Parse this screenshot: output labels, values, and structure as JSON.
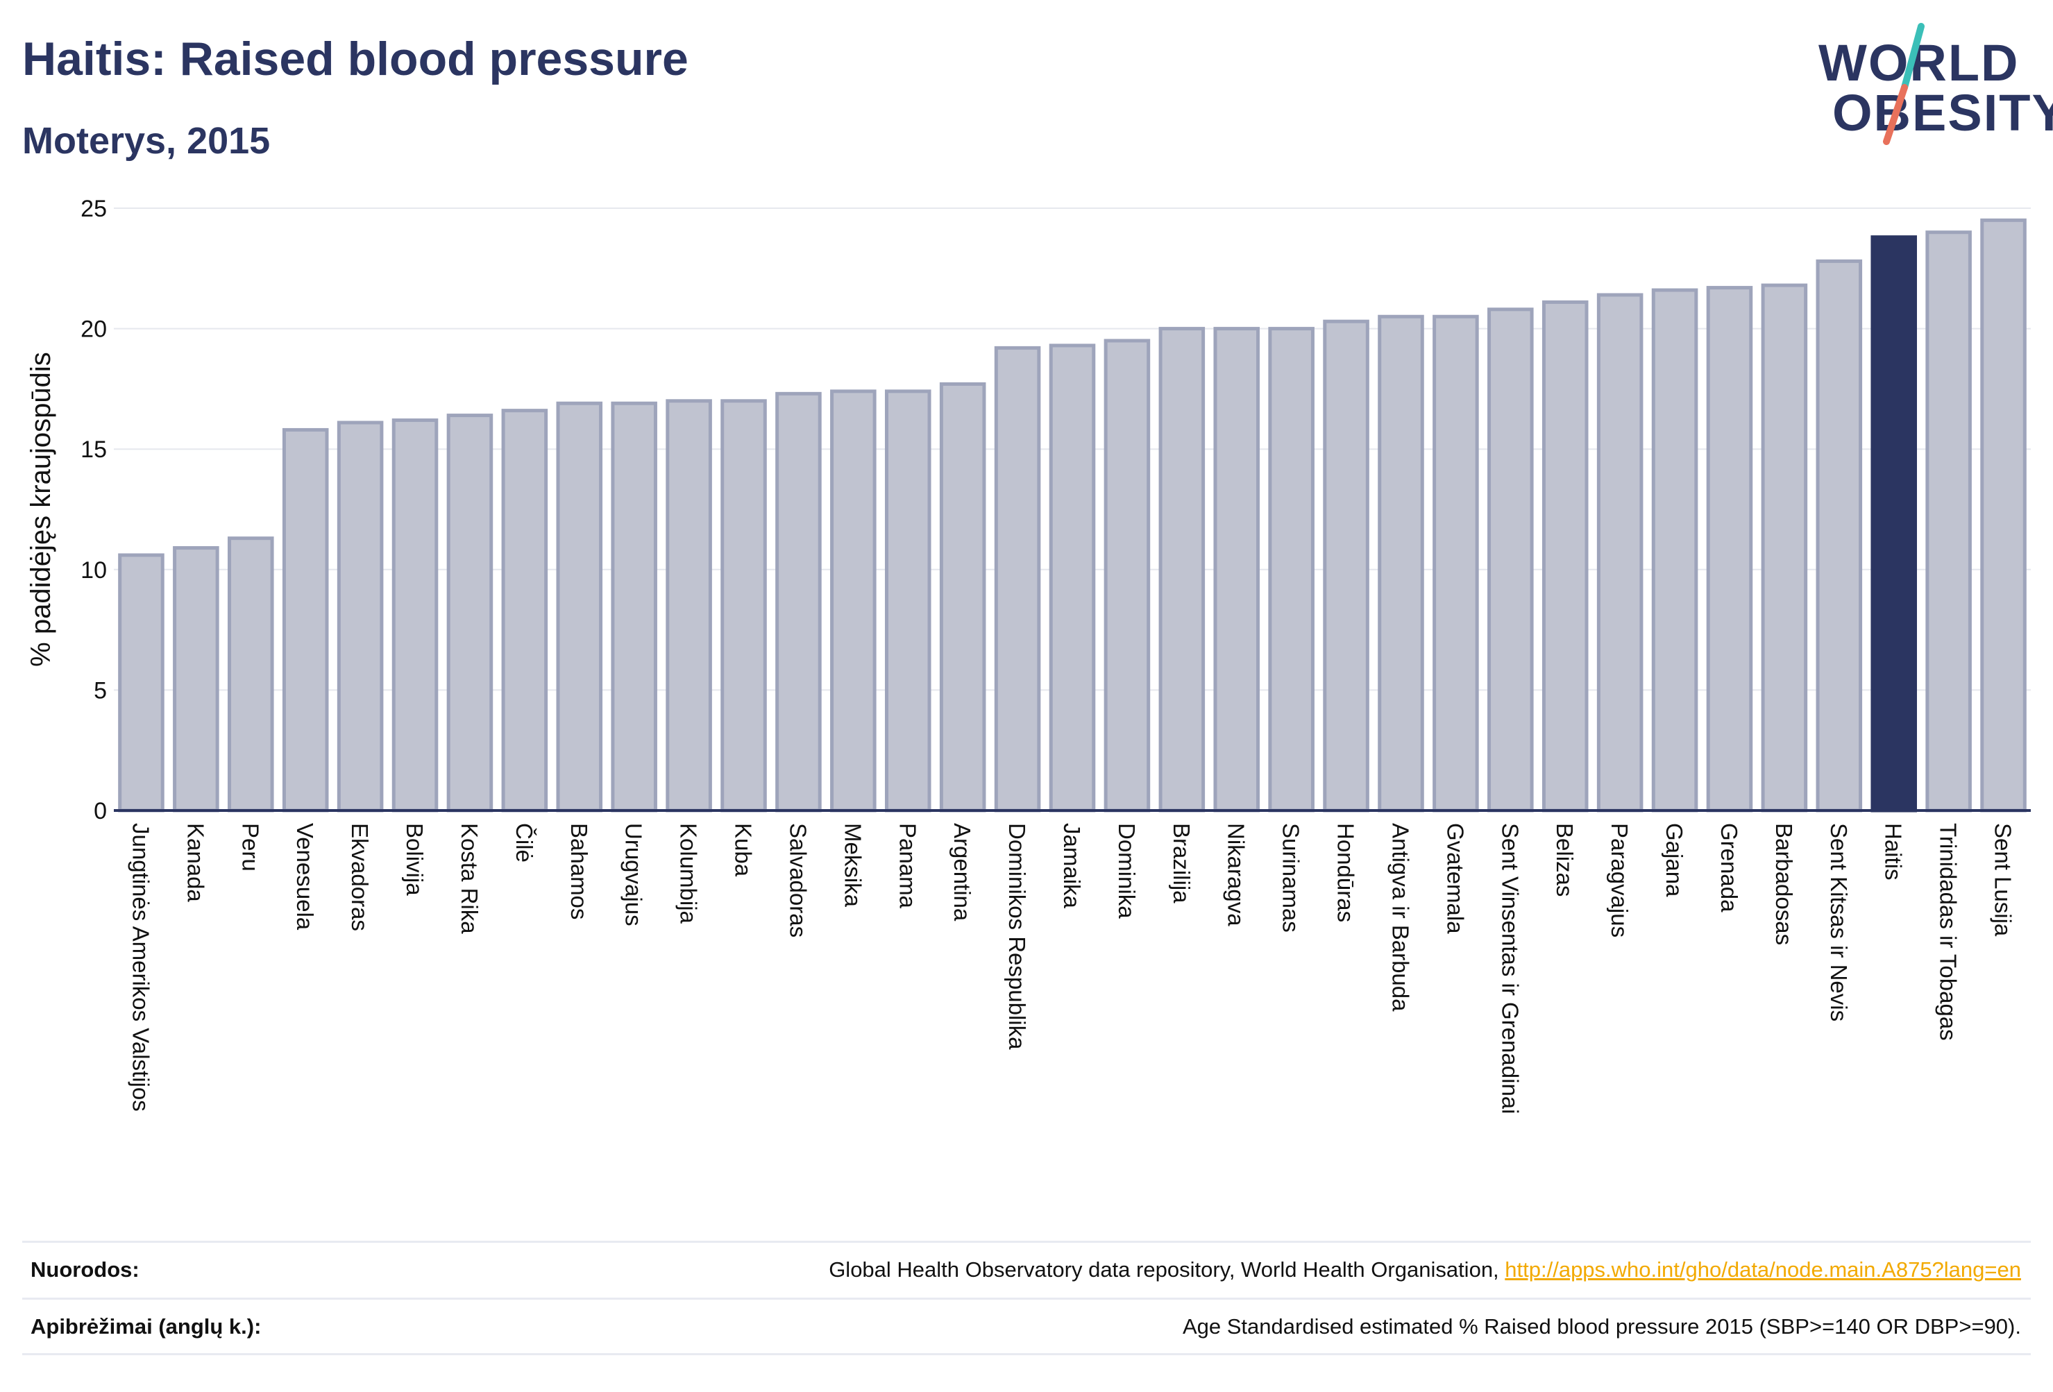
{
  "header": {
    "title": "Haitis: Raised blood pressure",
    "subtitle": "Moterys, 2015"
  },
  "logo": {
    "line1": "WORLD",
    "line2": "OBESITY"
  },
  "colors": {
    "bar": "#c0c3d0",
    "bar_border": "#9ea4bb",
    "highlight": "#2b3561",
    "logo_slash_top": "#3bbfb8",
    "logo_slash_bottom": "#e8715b"
  },
  "chart_data": {
    "type": "bar",
    "title": "Haitis: Raised blood pressure",
    "subtitle": "Moterys, 2015",
    "xlabel": "",
    "ylabel": "% padidėjęs kraujospūdis",
    "ylim": [
      0,
      25
    ],
    "yticks": [
      0,
      5,
      10,
      15,
      20,
      25
    ],
    "grid": true,
    "highlight_category": "Haitis",
    "categories": [
      "Jungtinės Amerikos Valstijos",
      "Kanada",
      "Peru",
      "Venesuela",
      "Ekvadoras",
      "Bolivija",
      "Kosta Rika",
      "Čilė",
      "Bahamos",
      "Urugvajus",
      "Kolumbija",
      "Kuba",
      "Salvadoras",
      "Meksika",
      "Panama",
      "Argentina",
      "Dominikos Respublika",
      "Jamaika",
      "Dominika",
      "Brazilija",
      "Nikaragva",
      "Surinamas",
      "Hondūras",
      "Antigva ir Barbuda",
      "Gvatemala",
      "Sent Vinsentas ir Grenadinai",
      "Belizas",
      "Paragvajus",
      "Gajana",
      "Grenada",
      "Barbadosas",
      "Sent Kitsas ir Nevis",
      "Haitis",
      "Trinidadas ir Tobagas",
      "Sent Lusija"
    ],
    "values": [
      10.6,
      10.9,
      11.3,
      15.8,
      16.1,
      16.2,
      16.4,
      16.6,
      16.9,
      16.9,
      17.0,
      17.0,
      17.3,
      17.4,
      17.4,
      17.7,
      19.2,
      19.3,
      19.5,
      20.0,
      20.0,
      20.0,
      20.3,
      20.5,
      20.5,
      20.8,
      21.1,
      21.4,
      21.6,
      21.7,
      21.8,
      22.8,
      23.8,
      24.0,
      24.5
    ]
  },
  "footer": {
    "sources_label": "Nuorodos:",
    "sources_text": "Global Health Observatory data repository, World Health Organisation, ",
    "sources_link": "http://apps.who.int/gho/data/node.main.A875?lang=en",
    "definitions_label": "Apibrėžimai (anglų k.):",
    "definitions_text": "Age Standardised estimated % Raised blood pressure 2015 (SBP>=140 OR DBP>=90)."
  }
}
